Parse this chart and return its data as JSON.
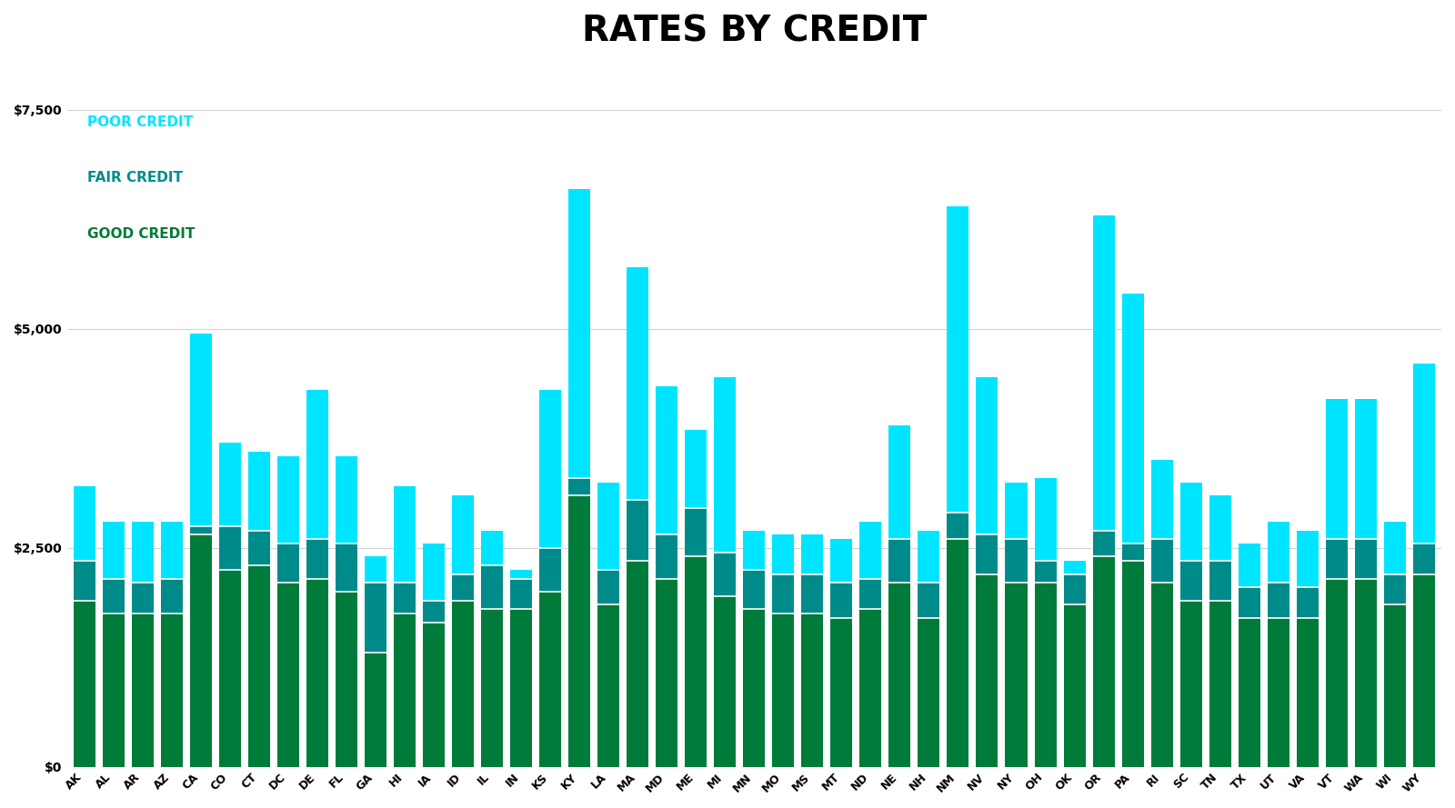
{
  "title": "RATES BY CREDIT",
  "categories": [
    "AK",
    "AL",
    "AR",
    "AZ",
    "CA",
    "CO",
    "CT",
    "DC",
    "DE",
    "FL",
    "GA",
    "HI",
    "IA",
    "ID",
    "IL",
    "IN",
    "KS",
    "KY",
    "LA",
    "MA",
    "MD",
    "ME",
    "MI",
    "MN",
    "MO",
    "MS",
    "MT",
    "ND",
    "NE",
    "NH",
    "NM",
    "NV",
    "NY",
    "OH",
    "OK",
    "OR",
    "PA",
    "RI",
    "SC",
    "TN",
    "TX",
    "UT",
    "VA",
    "VT",
    "WA",
    "WI",
    "WY"
  ],
  "poor_credit": [
    3200,
    2800,
    2800,
    2800,
    4950,
    3700,
    3600,
    3550,
    4300,
    3550,
    2400,
    3200,
    2550,
    3100,
    2700,
    2250,
    4300,
    6600,
    3250,
    5700,
    4350,
    3850,
    4450,
    2700,
    2650,
    2650,
    2600,
    2800,
    3900,
    2700,
    6400,
    4450,
    3250,
    3300,
    2350,
    6300,
    5400,
    3500,
    3250,
    3100,
    2550,
    2800,
    2700,
    4200,
    4200,
    2800,
    4600
  ],
  "fair_credit": [
    2350,
    2150,
    2100,
    2150,
    2750,
    2750,
    2700,
    2550,
    2600,
    2550,
    2100,
    2100,
    1900,
    2200,
    2300,
    2150,
    2500,
    3300,
    2250,
    3050,
    2650,
    2950,
    2450,
    2250,
    2200,
    2200,
    2100,
    2150,
    2600,
    2100,
    2900,
    2650,
    2600,
    2350,
    2200,
    2700,
    2550,
    2600,
    2350,
    2350,
    2050,
    2100,
    2050,
    2600,
    2600,
    2200,
    2550
  ],
  "good_credit": [
    1900,
    1750,
    1750,
    1750,
    2650,
    2250,
    2300,
    2100,
    2150,
    2000,
    1300,
    1750,
    1650,
    1900,
    1800,
    1800,
    2000,
    3100,
    1850,
    2350,
    2150,
    2400,
    1950,
    1800,
    1750,
    1750,
    1700,
    1800,
    2100,
    1700,
    2600,
    2200,
    2100,
    2100,
    1850,
    2400,
    2350,
    2100,
    1900,
    1900,
    1700,
    1700,
    1700,
    2150,
    2150,
    1850,
    2200
  ],
  "color_poor": "#00E5FF",
  "color_fair": "#008B8B",
  "color_good": "#007B3A",
  "background_color": "#FFFFFF",
  "title_fontsize": 28,
  "ytick_labels": [
    "$0",
    "$2,500",
    "$5,000",
    "$7,500"
  ],
  "ytick_vals": [
    0,
    2500,
    5000,
    7500
  ],
  "ylim_max": 8000
}
